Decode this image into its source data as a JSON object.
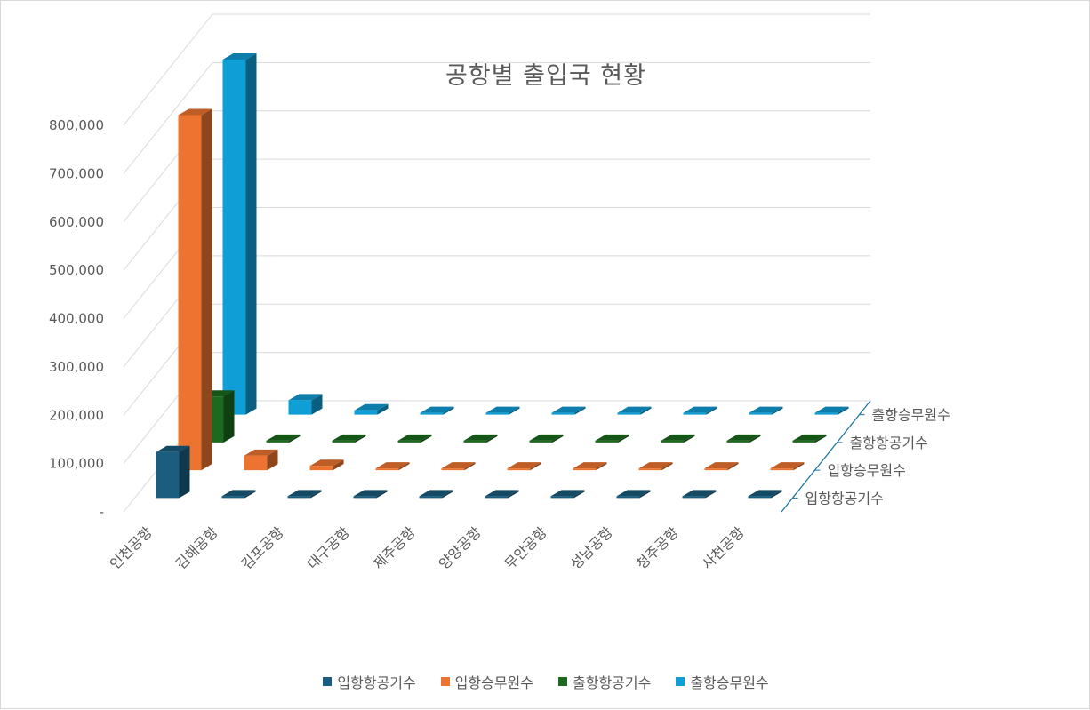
{
  "chart_data": {
    "type": "bar",
    "subtype": "3d-column",
    "title": "공항별 출입국 현황",
    "categories": [
      "인천공항",
      "김해공항",
      "김포공항",
      "대구공항",
      "제주공항",
      "양양공항",
      "무안공항",
      "성남공항",
      "청주공항",
      "사천공항"
    ],
    "series": [
      {
        "name": "입항항공기수",
        "color": "#1a5d7e",
        "values": [
          95000,
          1500,
          800,
          300,
          600,
          200,
          150,
          100,
          300,
          50
        ]
      },
      {
        "name": "입항승무원수",
        "color": "#ed7430",
        "values": [
          735000,
          30000,
          9000,
          2000,
          3000,
          500,
          400,
          300,
          1500,
          200
        ]
      },
      {
        "name": "출항항공기수",
        "color": "#1b6a1e",
        "values": [
          95000,
          1500,
          800,
          300,
          600,
          200,
          150,
          100,
          300,
          50
        ]
      },
      {
        "name": "출항승무원수",
        "color": "#109ed6",
        "values": [
          735000,
          30000,
          9000,
          2000,
          3000,
          500,
          400,
          300,
          1500,
          200
        ]
      }
    ],
    "yaxis": {
      "ticks": [
        "-",
        "100,000",
        "200,000",
        "300,000",
        "400,000",
        "500,000",
        "600,000",
        "700,000",
        "800,000"
      ],
      "ylim": [
        0,
        800000
      ]
    },
    "depth_labels": [
      "출항승무원수",
      "출항항공기수",
      "입항승무원수",
      "입항항공기수"
    ],
    "legend": {
      "position": "bottom"
    },
    "grid": true
  }
}
